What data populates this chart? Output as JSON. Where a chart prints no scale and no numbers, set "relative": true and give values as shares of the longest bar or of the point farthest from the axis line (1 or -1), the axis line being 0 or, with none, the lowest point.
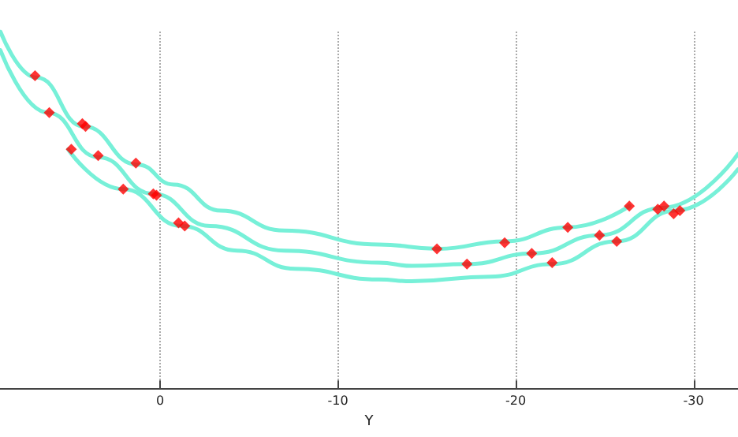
{
  "chart_data": {
    "type": "scatter",
    "xlabel": "Y",
    "relative": true,
    "xlim": [
      9,
      -32.5
    ],
    "xticks": [
      0,
      -10,
      -20,
      -30
    ],
    "grid": "x",
    "tick_labels": "x",
    "line_style": "solid",
    "series": [
      {
        "type": "line",
        "marker": "none",
        "color": "#77f0d8",
        "x": [
          8.98,
          6.94,
          4.28,
          1.27,
          -0.77,
          -3.43,
          -6.98,
          -12.3,
          -15.66,
          -19.38,
          -22.93,
          -26.39
        ],
        "values": [
          1.0,
          0.871,
          0.734,
          0.627,
          0.571,
          0.498,
          0.442,
          0.403,
          0.391,
          0.412,
          0.451,
          0.511
        ]
      },
      {
        "type": "line",
        "marker": "none",
        "color": "#77f0d8",
        "x": [
          8.98,
          6.32,
          3.48,
          0.38,
          -2.81,
          -6.98,
          -12.3,
          -14.16,
          -17.26,
          -20.99,
          -24.71,
          -28.25,
          -32.5
        ],
        "values": [
          0.948,
          0.773,
          0.648,
          0.545,
          0.455,
          0.386,
          0.352,
          0.343,
          0.348,
          0.378,
          0.429,
          0.506,
          0.657
        ]
      },
      {
        "type": "line",
        "marker": "none",
        "color": "#77f0d8",
        "x": [
          5.17,
          2.07,
          -1.22,
          -4.32,
          -7.6,
          -12.3,
          -14.16,
          -18.59,
          -22.05,
          -25.68,
          -28.96,
          -32.5
        ],
        "values": [
          0.67,
          0.558,
          0.455,
          0.386,
          0.335,
          0.305,
          0.3,
          0.313,
          0.348,
          0.412,
          0.498,
          0.614
        ]
      },
      {
        "marker": "diamond",
        "color": "#ff0000",
        "x": [
          7.03,
          6.23,
          4.37,
          4.19,
          4.99,
          3.48,
          1.36,
          2.07,
          0.38,
          0.2,
          -1.04,
          -1.39,
          -15.57,
          -19.38,
          -22.93,
          -26.39,
          -27.99,
          -28.34,
          -17.26,
          -20.9,
          -24.71,
          -28.88,
          -29.23,
          -22.05,
          -25.68
        ],
        "values": [
          0.876,
          0.773,
          0.742,
          0.734,
          0.67,
          0.652,
          0.631,
          0.558,
          0.545,
          0.541,
          0.464,
          0.455,
          0.391,
          0.408,
          0.451,
          0.511,
          0.502,
          0.511,
          0.348,
          0.378,
          0.429,
          0.489,
          0.498,
          0.352,
          0.412
        ]
      }
    ]
  }
}
